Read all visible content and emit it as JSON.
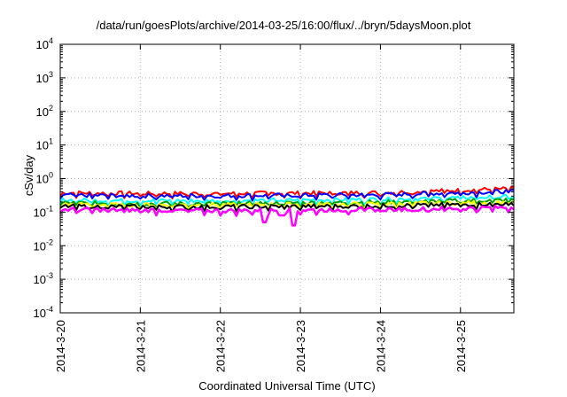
{
  "chart_data": {
    "type": "line",
    "title": "/data/run/goesPlots/archive/2014-03-25/16:00/flux/../bryn/5daysMoon.plot",
    "xlabel": "Coordinated Universal Time (UTC)",
    "ylabel": "cSv/day",
    "yscale": "log",
    "ylim": [
      0.0001,
      10000
    ],
    "xlim": [
      "2014-03-20T00:00",
      "2014-03-25T16:00"
    ],
    "grid": true,
    "y_ticks": [
      {
        "base": "10",
        "exp": "-4",
        "value": 0.0001
      },
      {
        "base": "10",
        "exp": "-3",
        "value": 0.001
      },
      {
        "base": "10",
        "exp": "-2",
        "value": 0.01
      },
      {
        "base": "10",
        "exp": "-1",
        "value": 0.1
      },
      {
        "base": "10",
        "exp": "0",
        "value": 1
      },
      {
        "base": "10",
        "exp": "1",
        "value": 10
      },
      {
        "base": "10",
        "exp": "2",
        "value": 100
      },
      {
        "base": "10",
        "exp": "3",
        "value": 1000
      },
      {
        "base": "10",
        "exp": "4",
        "value": 10000
      }
    ],
    "x_ticks": [
      {
        "label": "2014-3-20",
        "date": "2014-03-20"
      },
      {
        "label": "2014-3-21",
        "date": "2014-03-21"
      },
      {
        "label": "2014-3-22",
        "date": "2014-03-22"
      },
      {
        "label": "2014-3-23",
        "date": "2014-03-23"
      },
      {
        "label": "2014-3-24",
        "date": "2014-03-24"
      },
      {
        "label": "2014-3-25",
        "date": "2014-03-25"
      }
    ],
    "series": [
      {
        "color": "#ff0000",
        "x": [
          "2014-03-20T00:00",
          "2014-03-21T00:00",
          "2014-03-22T00:00",
          "2014-03-23T00:00",
          "2014-03-24T00:00",
          "2014-03-25T00:00",
          "2014-03-25T16:00"
        ],
        "y": [
          0.38,
          0.36,
          0.36,
          0.37,
          0.38,
          0.45,
          0.5
        ]
      },
      {
        "color": "#0000ff",
        "x": [
          "2014-03-20T00:00",
          "2014-03-21T00:00",
          "2014-03-22T00:00",
          "2014-03-23T00:00",
          "2014-03-24T00:00",
          "2014-03-25T00:00",
          "2014-03-25T16:00"
        ],
        "y": [
          0.32,
          0.31,
          0.31,
          0.32,
          0.33,
          0.38,
          0.42
        ]
      },
      {
        "color": "#00ffff",
        "x": [
          "2014-03-20T00:00",
          "2014-03-21T00:00",
          "2014-03-22T00:00",
          "2014-03-23T00:00",
          "2014-03-24T00:00",
          "2014-03-25T00:00",
          "2014-03-25T16:00"
        ],
        "y": [
          0.23,
          0.22,
          0.22,
          0.23,
          0.24,
          0.27,
          0.29
        ]
      },
      {
        "color": "#00a000",
        "x": [
          "2014-03-20T00:00",
          "2014-03-21T00:00",
          "2014-03-22T00:00",
          "2014-03-23T00:00",
          "2014-03-24T00:00",
          "2014-03-25T00:00",
          "2014-03-25T16:00"
        ],
        "y": [
          0.19,
          0.18,
          0.18,
          0.19,
          0.2,
          0.22,
          0.23
        ]
      },
      {
        "color": "#ffff00",
        "x": [
          "2014-03-20T00:00",
          "2014-03-21T00:00",
          "2014-03-22T00:00",
          "2014-03-23T00:00",
          "2014-03-24T00:00",
          "2014-03-25T00:00",
          "2014-03-25T16:00"
        ],
        "y": [
          0.17,
          0.165,
          0.165,
          0.17,
          0.175,
          0.19,
          0.2
        ]
      },
      {
        "color": "#000000",
        "x": [
          "2014-03-20T00:00",
          "2014-03-21T00:00",
          "2014-03-22T00:00",
          "2014-03-23T00:00",
          "2014-03-24T00:00",
          "2014-03-25T00:00",
          "2014-03-25T16:00"
        ],
        "y": [
          0.15,
          0.145,
          0.145,
          0.15,
          0.155,
          0.17,
          0.18
        ]
      },
      {
        "color": "#ff00ff",
        "x": [
          "2014-03-20T00:00",
          "2014-03-21T00:00",
          "2014-03-22T00:00",
          "2014-03-23T00:00",
          "2014-03-24T00:00",
          "2014-03-25T00:00",
          "2014-03-25T16:00"
        ],
        "y": [
          0.12,
          0.115,
          0.11,
          0.115,
          0.12,
          0.13,
          0.14
        ]
      }
    ],
    "dips": [
      {
        "x": "2014-03-22T13:00",
        "y": 0.05
      },
      {
        "x": "2014-03-22T18:00",
        "y": 0.08
      },
      {
        "x": "2014-03-22T22:00",
        "y": 0.04
      }
    ]
  }
}
